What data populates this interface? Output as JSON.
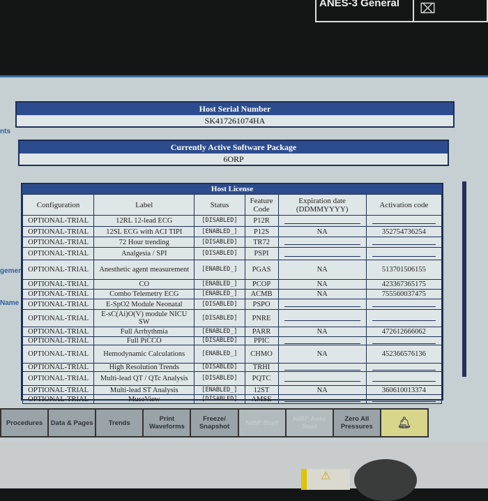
{
  "top": {
    "profile": "ANES-3 General",
    "alarm_icon": "alarm-off-icon"
  },
  "side": {
    "a": "nts",
    "b": "gement",
    "c": "Name"
  },
  "serial": {
    "title": "Host Serial Number",
    "value": "SK417261074HA"
  },
  "package": {
    "title": "Currently Active Software Package",
    "value": "6ORP"
  },
  "license": {
    "title": "Host License",
    "headers": [
      "Configuration",
      "Label",
      "Status",
      "Feature Code",
      "Expiration date (DDMMYYYY)",
      "Activation code"
    ],
    "rows": [
      [
        "OPTIONAL-TRIAL",
        "12RL 12-lead ECG",
        "[DISABLED]",
        "P12R",
        "",
        ""
      ],
      [
        "OPTIONAL-TRIAL",
        "12SL ECG with ACI TIPI",
        "[ENABLED_]",
        "P12S",
        "NA",
        "352754736254"
      ],
      [
        "OPTIONAL-TRIAL",
        "72 Hour trending",
        "[DISABLED]",
        "TR72",
        "",
        ""
      ],
      [
        "OPTIONAL-TRIAL",
        "Analgesia / SPI",
        "[DISABLED]",
        "PSPI",
        "",
        ""
      ],
      [
        "OPTIONAL-TRIAL",
        "Anesthetic agent measurement",
        "[ENABLED_]",
        "PGAS",
        "NA",
        "513701506155"
      ],
      [
        "OPTIONAL-TRIAL",
        "CO",
        "[ENABLED_]",
        "PCOP",
        "NA",
        "423367365175"
      ],
      [
        "OPTIONAL-TRIAL",
        "Combo Telemetry ECG",
        "[ENABLED_]",
        "ACMB",
        "NA",
        "755560037475"
      ],
      [
        "OPTIONAL-TRIAL",
        "E-SpO2 Module Neonatal",
        "[DISABLED]",
        "PSPO",
        "",
        ""
      ],
      [
        "OPTIONAL-TRIAL",
        "E-sC(Ai)O(V) module NICU SW",
        "[DISABLED]",
        "PNRE",
        "",
        ""
      ],
      [
        "OPTIONAL-TRIAL",
        "Full Arrhythmia",
        "[ENABLED_]",
        "PARR",
        "NA",
        "472612666062"
      ],
      [
        "OPTIONAL-TRIAL",
        "Full PiCCO",
        "[DISABLED]",
        "PPIC",
        "",
        ""
      ],
      [
        "OPTIONAL-TRIAL",
        "Hemodynamic Calculations",
        "[ENABLED_]",
        "CHMO",
        "NA",
        "452366576136"
      ],
      [
        "OPTIONAL-TRIAL",
        "High Resolution Trends",
        "[DISABLED]",
        "TRHI",
        "",
        ""
      ],
      [
        "OPTIONAL-TRIAL",
        "Multi-lead QT / QTc Analysis",
        "[DISABLED]",
        "PQTC",
        "",
        ""
      ],
      [
        "OPTIONAL-TRIAL",
        "Multi-lead ST Analysis",
        "[ENABLED_]",
        "12ST",
        "NA",
        "360610013374"
      ],
      [
        "OPTIONAL-TRIAL",
        "MuseView",
        "[DISABLED]",
        "AMSE",
        "",
        ""
      ]
    ]
  },
  "bottom_bar": [
    {
      "label": "Procedures",
      "disabled": false
    },
    {
      "label": "Data & Pages",
      "disabled": false
    },
    {
      "label": "Trends",
      "disabled": false
    },
    {
      "label": "Print Waveforms",
      "disabled": false
    },
    {
      "label": "Freeze/ Snapshot",
      "disabled": false
    },
    {
      "label": "NIBP Start",
      "disabled": true
    },
    {
      "label": "NIBP Auto Start",
      "disabled": true
    },
    {
      "label": "Zero All Pressures",
      "disabled": false
    }
  ],
  "alarm_button_icon": "alarm-bell-icon",
  "colors": {
    "header_blue": "#2c4c8e",
    "panel_bg": "#dfe6e7",
    "alarm_yellow": "#d8d68a"
  }
}
